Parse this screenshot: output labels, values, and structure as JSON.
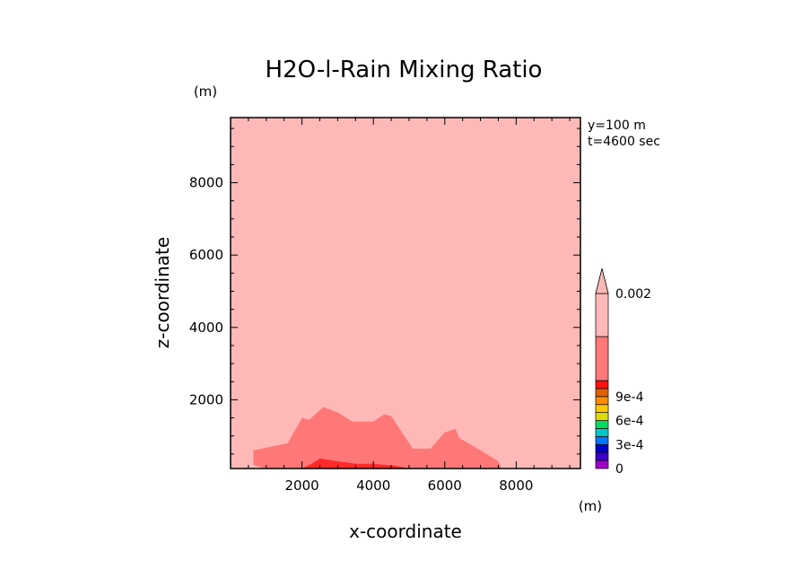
{
  "chart_data": {
    "type": "contour",
    "title": "H2O-l-Rain Mixing Ratio",
    "xlabel": "x-coordinate",
    "ylabel": "z-coordinate",
    "x_unit": "(m)",
    "y_unit": "(m)",
    "xlim": [
      0,
      9800
    ],
    "ylim": [
      100,
      9800
    ],
    "x_ticks": [
      2000,
      4000,
      6000,
      8000
    ],
    "y_ticks": [
      2000,
      4000,
      6000,
      8000
    ],
    "annotations": [
      "y=100 m",
      "t=4600 sec"
    ],
    "background_fill": "#ffb8b8",
    "regions": [
      {
        "fill": "#ff7878",
        "points": [
          [
            640,
            200
          ],
          [
            640,
            600
          ],
          [
            1600,
            800
          ],
          [
            2000,
            1500
          ],
          [
            2200,
            1450
          ],
          [
            2600,
            1800
          ],
          [
            3000,
            1650
          ],
          [
            3400,
            1400
          ],
          [
            4000,
            1400
          ],
          [
            4300,
            1600
          ],
          [
            4500,
            1550
          ],
          [
            5100,
            650
          ],
          [
            5600,
            650
          ],
          [
            6000,
            1100
          ],
          [
            6300,
            1200
          ],
          [
            6400,
            950
          ],
          [
            7000,
            600
          ],
          [
            7500,
            300
          ],
          [
            7600,
            100
          ],
          [
            1000,
            100
          ]
        ]
      },
      {
        "fill": "#ff2a2a",
        "points": [
          [
            2000,
            100
          ],
          [
            2300,
            250
          ],
          [
            2500,
            380
          ],
          [
            2800,
            330
          ],
          [
            3500,
            230
          ],
          [
            4000,
            230
          ],
          [
            4600,
            180
          ],
          [
            5000,
            100
          ]
        ]
      }
    ],
    "colorbar": {
      "min_label": "0",
      "labels": [
        {
          "value": "0",
          "bin": 0
        },
        {
          "value": "3e-4",
          "bin": 3
        },
        {
          "value": "6e-4",
          "bin": 6
        },
        {
          "value": "9e-4",
          "bin": 9
        },
        {
          "value": "0.002",
          "bin": 12
        }
      ],
      "bins": [
        "#a000c8",
        "#3c00c8",
        "#0000c8",
        "#0078ff",
        "#00c8c8",
        "#00dc64",
        "#dcdc00",
        "#ffc800",
        "#ff8c00",
        "#e06000",
        "#ff1010",
        "#ff7878",
        "#ffb8b8"
      ],
      "bin_bottoms": [
        0,
        1,
        2,
        3,
        4,
        5,
        6,
        7,
        8,
        9,
        10,
        11,
        12
      ]
    }
  }
}
